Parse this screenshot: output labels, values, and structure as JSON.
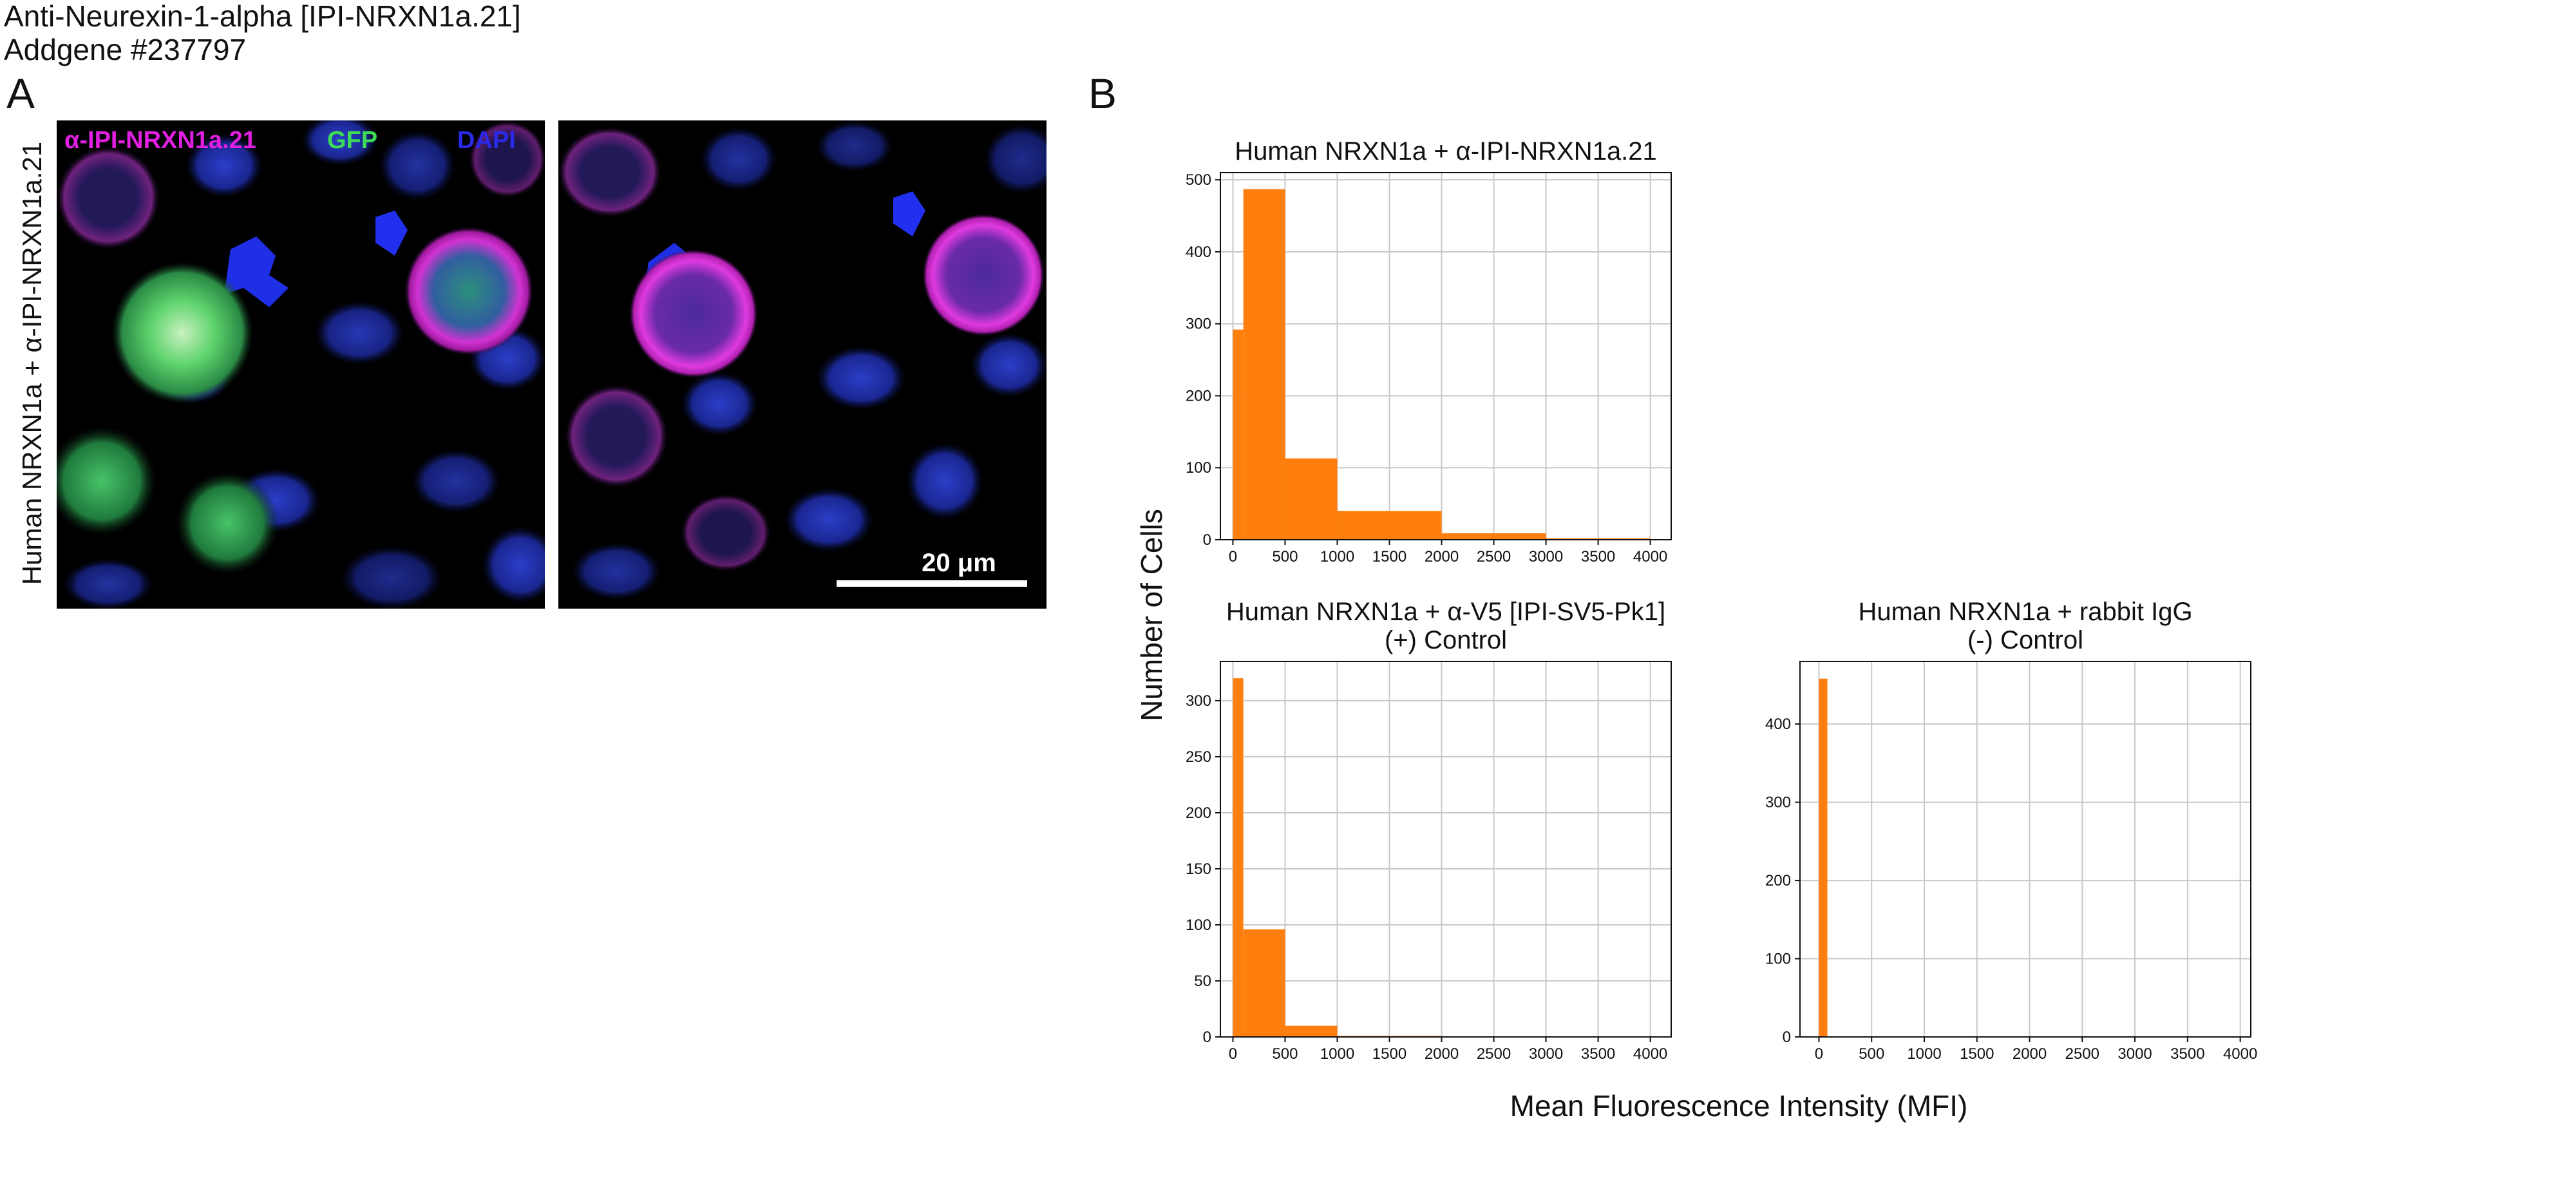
{
  "header": {
    "line1": "Anti-Neurexin-1-alpha [IPI-NRXN1a.21]",
    "line2": "Addgene #237797"
  },
  "panel_a": {
    "letter": "A",
    "row_label": "Human NRXN1a + α-IPI-NRXN1a.21",
    "channels": [
      {
        "label": "α-IPI-NRXN1a.21",
        "color": "#e01fe0"
      },
      {
        "label": "GFP",
        "color": "#3ddc55"
      },
      {
        "label": "DAPI",
        "color": "#2a2ae8"
      }
    ],
    "scale_bar": "20 μm"
  },
  "panel_b": {
    "letter": "B",
    "ylabel": "Number of Cells",
    "xlabel": "Mean Fluorescence Intensity (MFI)",
    "bar_color": "#ff7f0e"
  },
  "chart_data": [
    {
      "type": "bar",
      "title": [
        "Human NRXN1a + α-IPI-NRXN1a.21"
      ],
      "xlabel": "Mean Fluorescence Intensity (MFI)",
      "ylabel": "Number of Cells",
      "xlim": [
        -120,
        4200
      ],
      "ylim": [
        0,
        510
      ],
      "xticks": [
        0,
        500,
        1000,
        1500,
        2000,
        2500,
        3000,
        3500,
        4000
      ],
      "yticks": [
        0,
        100,
        200,
        300,
        400,
        500
      ],
      "bins": [
        {
          "x0": 0,
          "x1": 100,
          "count": 292
        },
        {
          "x0": 100,
          "x1": 500,
          "count": 487
        },
        {
          "x0": 500,
          "x1": 1000,
          "count": 113
        },
        {
          "x0": 1000,
          "x1": 2000,
          "count": 40
        },
        {
          "x0": 2000,
          "x1": 3000,
          "count": 9
        },
        {
          "x0": 3000,
          "x1": 4000,
          "count": 2
        }
      ]
    },
    {
      "type": "bar",
      "title": [
        "Human NRXN1a + α-V5 [IPI-SV5-Pk1]",
        "(+) Control"
      ],
      "xlabel": "Mean Fluorescence Intensity (MFI)",
      "ylabel": "Number of Cells",
      "xlim": [
        -120,
        4200
      ],
      "ylim": [
        0,
        335
      ],
      "xticks": [
        0,
        500,
        1000,
        1500,
        2000,
        2500,
        3000,
        3500,
        4000
      ],
      "yticks": [
        0,
        50,
        100,
        150,
        200,
        250,
        300
      ],
      "bins": [
        {
          "x0": 0,
          "x1": 100,
          "count": 320
        },
        {
          "x0": 100,
          "x1": 500,
          "count": 96
        },
        {
          "x0": 500,
          "x1": 1000,
          "count": 10
        },
        {
          "x0": 1000,
          "x1": 2000,
          "count": 1
        },
        {
          "x0": 2000,
          "x1": 3000,
          "count": 0
        },
        {
          "x0": 3000,
          "x1": 4000,
          "count": 0
        }
      ]
    },
    {
      "type": "bar",
      "title": [
        "Human NRXN1a + rabbit IgG",
        "(-) Control"
      ],
      "xlabel": "Mean Fluorescence Intensity (MFI)",
      "ylabel": "Number of Cells",
      "xlim": [
        -180,
        4100
      ],
      "ylim": [
        0,
        480
      ],
      "xticks": [
        0,
        500,
        1000,
        1500,
        2000,
        2500,
        3000,
        3500,
        4000
      ],
      "yticks": [
        0,
        100,
        200,
        300,
        400
      ],
      "bins": [
        {
          "x0": 0,
          "x1": 80,
          "count": 458
        }
      ]
    }
  ]
}
